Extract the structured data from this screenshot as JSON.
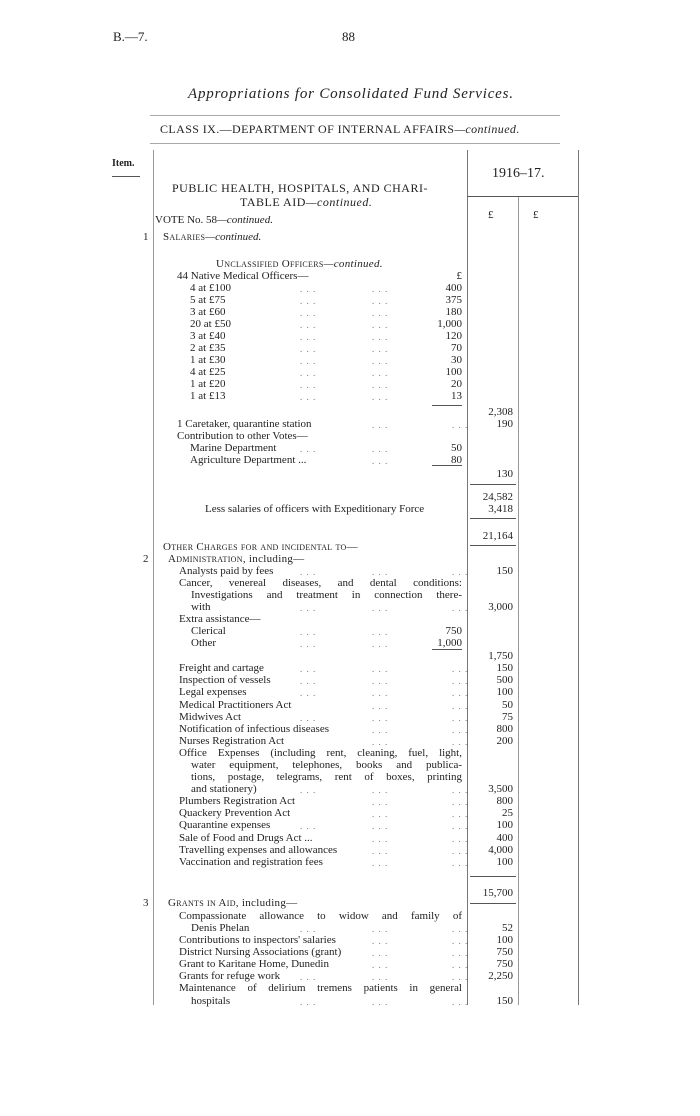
{
  "header": {
    "ref": "B.—7.",
    "page": "88",
    "title": "Appropriations for Consolidated Fund Services.",
    "class_line": "CLASS IX.—DEPARTMENT OF INTERNAL AFFAIRS",
    "class_cont": "—continued."
  },
  "table": {
    "item_label": "Item.",
    "year": "1916–17.",
    "currency_1": "£",
    "currency_2": "£"
  },
  "section": {
    "heading_1": "PUBLIC HEALTH, HOSPITALS, AND CHARI-",
    "heading_2": "TABLE AID",
    "heading_cont": "—continued.",
    "vote": "VOTE No. 58",
    "vote_cont": "—continued.",
    "item_1": "1",
    "salaries": "Salaries",
    "salaries_cont": "—continued."
  },
  "rows": [
    {
      "text": "Unclassified Officers",
      "em": "—continued."
    },
    {
      "text": "44 Native Medical Officers—",
      "sub": "£"
    },
    {
      "text": "4 at £100",
      "sub": "400"
    },
    {
      "text": "5 at £75",
      "sub": "375"
    },
    {
      "text": "3 at £60",
      "sub": "180"
    },
    {
      "text": "20 at £50",
      "sub": "1,000"
    },
    {
      "text": "3 at £40",
      "sub": "120"
    },
    {
      "text": "2 at £35",
      "sub": "70"
    },
    {
      "text": "1 at £30",
      "sub": "30"
    },
    {
      "text": "4 at £25",
      "sub": "100"
    },
    {
      "text": "1 at £20",
      "sub": "20"
    },
    {
      "text": "1 at £13",
      "sub": "13"
    },
    {
      "amt": "2,308"
    },
    {
      "text": "1 Caretaker, quarantine station",
      "amt": "190"
    },
    {
      "text": "Contribution to other Votes—"
    },
    {
      "text": "Marine Department",
      "sub": "50"
    },
    {
      "text": "Agriculture Department ...",
      "sub": "80"
    },
    {
      "amt": "130"
    },
    {
      "amt": "24,582"
    },
    {
      "text": "Less salaries of officers with Expeditionary Force",
      "amt": "3,418"
    },
    {
      "amt": "21,164"
    },
    {
      "text": "Other Charges for and incidental to—"
    },
    {
      "item": "2",
      "text": "Administration",
      "tail": ", including—"
    },
    {
      "text": "Analysts paid by fees",
      "amt": "150"
    },
    {
      "text": "Cancer, venereal diseases, and dental conditions:"
    },
    {
      "text": "Investigations and treatment in connection there-"
    },
    {
      "text": "with",
      "amt": "3,000"
    },
    {
      "text": "Extra assistance—"
    },
    {
      "text": "Clerical",
      "sub": "750"
    },
    {
      "text": "Other",
      "sub": "1,000"
    },
    {
      "amt": "1,750"
    },
    {
      "text": "Freight and cartage",
      "amt": "150"
    },
    {
      "text": "Inspection of vessels",
      "amt": "500"
    },
    {
      "text": "Legal expenses",
      "amt": "100"
    },
    {
      "text": "Medical Practitioners Act",
      "amt": "50"
    },
    {
      "text": "Midwives Act",
      "amt": "75"
    },
    {
      "text": "Notification of infectious diseases",
      "amt": "800"
    },
    {
      "text": "Nurses Registration Act",
      "amt": "200"
    },
    {
      "text": "Office Expenses (including rent, cleaning, fuel, light,"
    },
    {
      "text": "water equipment, telephones, books and publica-"
    },
    {
      "text": "tions, postage, telegrams, rent of boxes, printing"
    },
    {
      "text": "and stationery)",
      "amt": "3,500"
    },
    {
      "text": "Plumbers Registration Act",
      "amt": "800"
    },
    {
      "text": "Quackery Prevention Act",
      "amt": "25"
    },
    {
      "text": "Quarantine expenses",
      "amt": "100"
    },
    {
      "text": "Sale of Food and Drugs Act ...",
      "amt": "400"
    },
    {
      "text": "Travelling expenses and allowances",
      "amt": "4,000"
    },
    {
      "text": "Vaccination and registration fees",
      "amt": "100"
    },
    {
      "amt": "15,700"
    },
    {
      "item": "3",
      "text": "Grants in Aid",
      "tail": ", including—"
    },
    {
      "text": "Compassionate allowance to widow and family of"
    },
    {
      "text": "Denis Phelan",
      "amt": "52"
    },
    {
      "text": "Contributions to inspectors' salaries",
      "amt": "100"
    },
    {
      "text": "District Nursing Associations (grant)",
      "amt": "750"
    },
    {
      "text": "Grant to Karitane Home, Dunedin",
      "amt": "750"
    },
    {
      "text": "Grants for refuge work",
      "amt": "2,250"
    },
    {
      "text": "Maintenance of delirium tremens patients in general"
    },
    {
      "text": "hospitals",
      "amt": "150"
    }
  ]
}
